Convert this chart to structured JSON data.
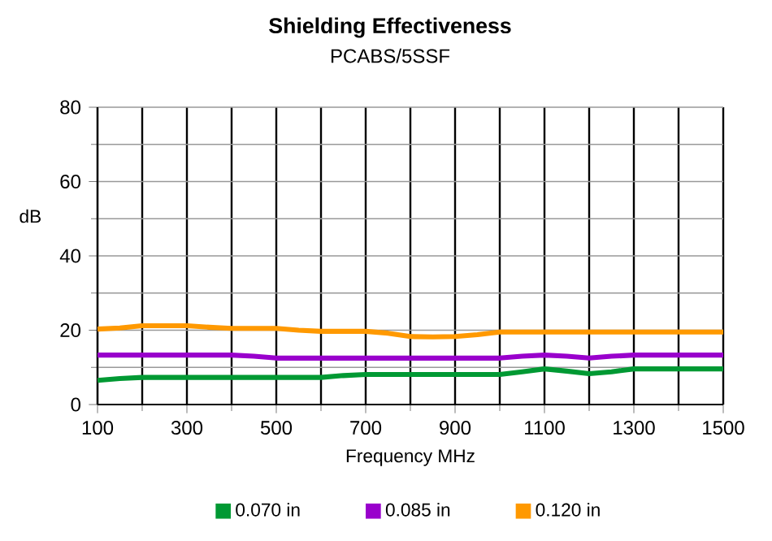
{
  "chart_data": {
    "type": "line",
    "title": "Shielding Effectiveness",
    "subtitle": "PCABS/5SSF",
    "xlabel": "Frequency MHz",
    "ylabel": "dB",
    "x": [
      100,
      150,
      200,
      250,
      300,
      350,
      400,
      450,
      500,
      550,
      600,
      650,
      700,
      750,
      800,
      850,
      900,
      950,
      1000,
      1050,
      1100,
      1150,
      1200,
      1250,
      1300,
      1350,
      1400,
      1450,
      1500
    ],
    "series": [
      {
        "name": "0.070 in",
        "color": "#009933",
        "values": [
          6.5,
          7.0,
          7.3,
          7.3,
          7.3,
          7.3,
          7.3,
          7.3,
          7.3,
          7.3,
          7.3,
          7.8,
          8.1,
          8.1,
          8.1,
          8.1,
          8.1,
          8.1,
          8.1,
          8.8,
          9.6,
          9.0,
          8.3,
          8.8,
          9.6,
          9.6,
          9.6,
          9.6,
          9.6
        ]
      },
      {
        "name": "0.085 in",
        "color": "#9900cc",
        "values": [
          13.3,
          13.3,
          13.3,
          13.3,
          13.3,
          13.3,
          13.3,
          13.0,
          12.5,
          12.5,
          12.5,
          12.5,
          12.5,
          12.5,
          12.5,
          12.5,
          12.5,
          12.5,
          12.5,
          13.0,
          13.3,
          13.0,
          12.5,
          13.0,
          13.3,
          13.3,
          13.3,
          13.3,
          13.3
        ]
      },
      {
        "name": "0.120 in",
        "color": "#ff9900",
        "values": [
          20.3,
          20.6,
          21.2,
          21.2,
          21.2,
          20.8,
          20.5,
          20.5,
          20.5,
          20.0,
          19.7,
          19.7,
          19.7,
          19.2,
          18.3,
          18.2,
          18.3,
          18.8,
          19.5,
          19.5,
          19.5,
          19.5,
          19.5,
          19.5,
          19.5,
          19.5,
          19.5,
          19.5,
          19.5
        ]
      }
    ],
    "xlim": [
      100,
      1500
    ],
    "xticks": [
      100,
      300,
      500,
      700,
      900,
      1100,
      1300,
      1500
    ],
    "ylim": [
      0,
      80
    ],
    "yticks": [
      0,
      20,
      40,
      60,
      80
    ],
    "grid": true,
    "legend": "bottom"
  }
}
